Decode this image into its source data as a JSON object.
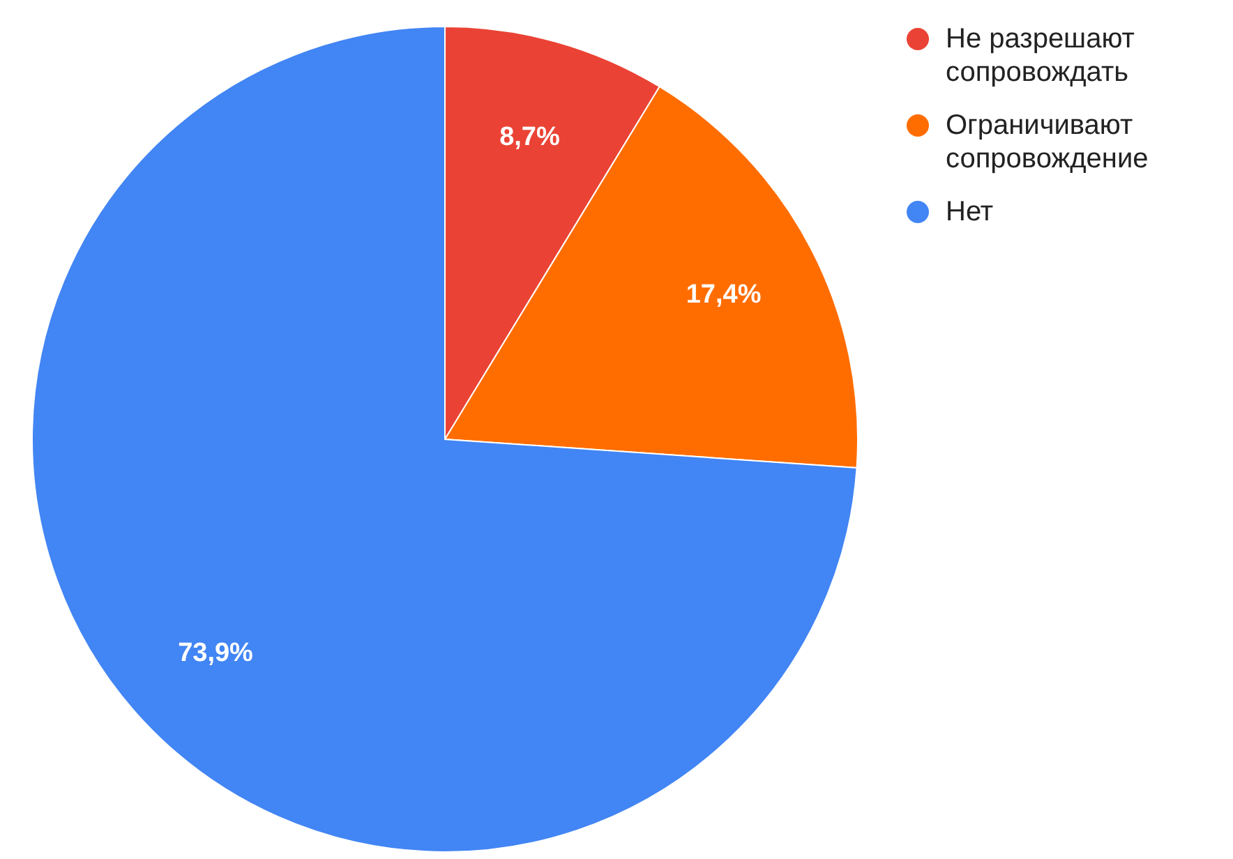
{
  "chart_data": {
    "type": "pie",
    "categories": [
      "Не разрешают сопровождать",
      "Ограничивают сопровождение",
      "Нет"
    ],
    "values": [
      8.7,
      17.4,
      73.9
    ],
    "colors": [
      "#ea4335",
      "#ff6d01",
      "#4285f4"
    ],
    "value_labels": [
      "8,7%",
      "17,4%",
      "73,9%"
    ],
    "legend": "top right"
  }
}
